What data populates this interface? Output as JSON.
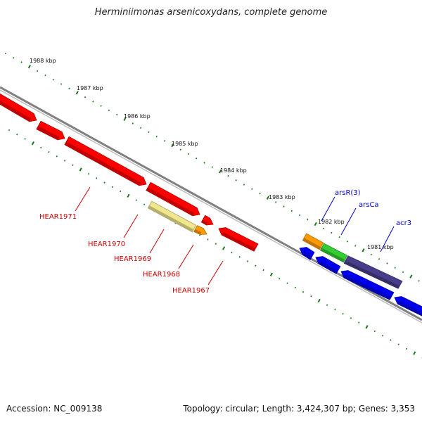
{
  "title": "Herminiimonas arsenicoxydans, complete genome",
  "footer": {
    "accession": "Accession: NC_009138",
    "topology": "Topology: circular; Length: 3,424,307 bp; Genes: 3,353"
  },
  "ruler": [
    "1988 kbp",
    "1987 kbp",
    "1986 kbp",
    "1985 kbp",
    "1984 kbp",
    "1983 kbp",
    "1982 kbp",
    "1981 kbp"
  ],
  "gene_labels": {
    "red": [
      "HEAR1971",
      "HEAR1970",
      "HEAR1969",
      "HEAR1968",
      "HEAR1967"
    ],
    "blue": [
      "arsR(3)",
      "arsCa",
      "acr3"
    ]
  },
  "colors": {
    "red": "#ff0000",
    "yellow": "#f0e68c",
    "orange": "#ff9900",
    "green": "#33cc33",
    "purple": "#483d8b",
    "blue": "#0000ee",
    "backbone": "#808080",
    "ticks": "#1a7a1a"
  }
}
